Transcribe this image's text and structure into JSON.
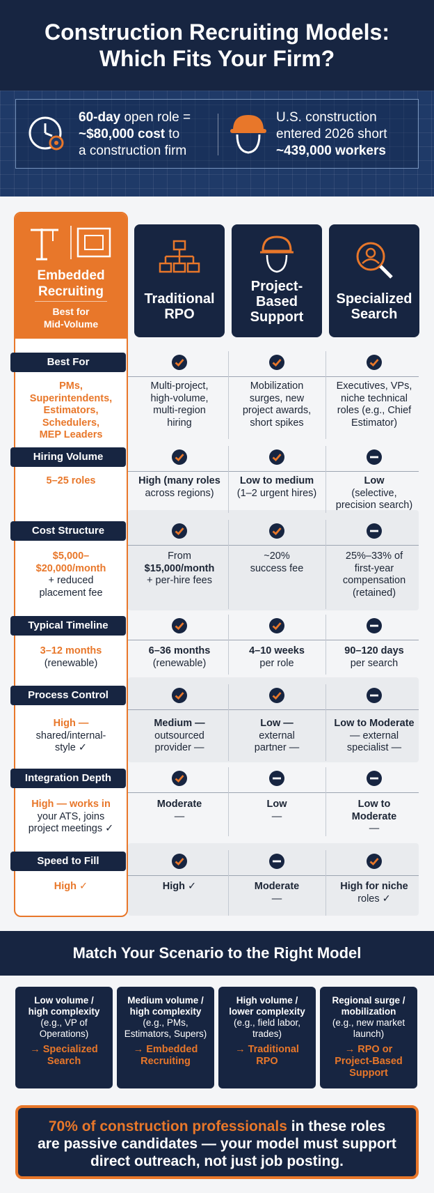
{
  "title": "Construction Recruiting Models: Which Fits Your Firm?",
  "stats": [
    {
      "bold": "60-day",
      "rest": " open role =",
      "line2_bold": "~$80,000 cost",
      "line2_rest": " to",
      "line3": "a construction firm"
    },
    {
      "line1": "U.S. construction",
      "line2": "entered 2026 short",
      "line3_bold": "~439,000 workers"
    }
  ],
  "embedded": {
    "title_line1": "Embedded",
    "title_line2": "Recruiting",
    "sub_line1": "Best for",
    "sub_line2": "Mid-Volume"
  },
  "columns": [
    {
      "line1": "Traditional",
      "line2": "RPO",
      "line3": ""
    },
    {
      "line1": "Project-",
      "line2": "Based",
      "line3": "Support"
    },
    {
      "line1": "Specialized",
      "line2": "Search",
      "line3": ""
    }
  ],
  "rows": [
    {
      "label": "Best For",
      "embedded": [
        "PMs,",
        "Superintendents,",
        "Estimators,",
        "Schedulers,",
        "MEP Leaders"
      ],
      "icons": [
        "check",
        "check",
        "check"
      ],
      "cells": [
        [
          "Multi-project,",
          "high-volume,",
          "multi-region",
          "hiring"
        ],
        [
          "Mobilization",
          "surges, new",
          "project awards,",
          "short spikes"
        ],
        [
          "Executives, VPs,",
          "niche technical",
          "roles (e.g., Chief",
          "Estimator)"
        ]
      ]
    },
    {
      "label": "Hiring Volume",
      "embedded": [
        "5–25 roles"
      ],
      "icons": [
        "check",
        "check",
        "minus"
      ],
      "cells": [
        [
          "High (many roles",
          "across regions)"
        ],
        [
          "Low to medium",
          "(1–2 urgent hires)"
        ],
        [
          "Low",
          "(selective,",
          "precision search)"
        ]
      ]
    },
    {
      "label": "Cost Structure",
      "embedded": [
        "$5,000–",
        "$20,000/month",
        "+ reduced",
        "placement fee"
      ],
      "icons": [
        "check",
        "check",
        "minus"
      ],
      "cells": [
        [
          "From",
          "$15,000/month",
          "+ per-hire fees"
        ],
        [
          "~20%",
          "success fee"
        ],
        [
          "25%–33% of",
          "first-year",
          "compensation",
          "(retained)"
        ]
      ]
    },
    {
      "label": "Typical Timeline",
      "embedded": [
        "3–12 months",
        "(renewable)"
      ],
      "icons": [
        "check",
        "check",
        "minus"
      ],
      "cells": [
        [
          "6–36 months",
          "(renewable)"
        ],
        [
          "4–10 weeks",
          "per role"
        ],
        [
          "90–120 days",
          "per search"
        ]
      ]
    },
    {
      "label": "Process Control",
      "embedded": [
        "High —",
        "shared/internal-",
        "style ✓"
      ],
      "icons": [
        "check",
        "check",
        "minus"
      ],
      "cells": [
        [
          "Medium —",
          "outsourced",
          "provider —"
        ],
        [
          "Low —",
          "external",
          "partner —"
        ],
        [
          "Low to Moderate",
          "— external",
          "specialist —"
        ]
      ]
    },
    {
      "label": "Integration Depth",
      "embedded": [
        "High — works in",
        "your ATS, joins",
        "project meetings ✓"
      ],
      "icons": [
        "check",
        "minus",
        "minus"
      ],
      "cells": [
        [
          "Moderate",
          "—"
        ],
        [
          "Low",
          "—"
        ],
        [
          "Low to",
          "Moderate",
          "—"
        ]
      ]
    },
    {
      "label": "Speed to Fill",
      "embedded": [
        "High ✓"
      ],
      "icons": [
        "check",
        "minus",
        "check"
      ],
      "cells": [
        [
          "High ✓"
        ],
        [
          "Moderate",
          "—"
        ],
        [
          "High for niche",
          "roles ✓"
        ]
      ]
    }
  ],
  "scenario_title": "Match Your Scenario to the Right Model",
  "scenarios": [
    {
      "t1": "Low volume /",
      "t2": "high complexity",
      "d1": "(e.g., VP of",
      "d2": "Operations)",
      "r1": "→ Specialized",
      "r2": "Search",
      "r3": ""
    },
    {
      "t1": "Medium volume /",
      "t2": "high complexity",
      "d1": "(e.g., PMs,",
      "d2": "Estimators, Supers)",
      "r1": "→ Embedded",
      "r2": "Recruiting",
      "r3": ""
    },
    {
      "t1": "High volume /",
      "t2": "lower complexity",
      "d1": "(e.g., field labor,",
      "d2": "trades)",
      "r1": "→ Traditional",
      "r2": "RPO",
      "r3": ""
    },
    {
      "t1": "Regional surge /",
      "t2": "mobilization",
      "d1": "(e.g., new market",
      "d2": "launch)",
      "r1": "→ RPO or",
      "r2": "Project-Based",
      "r3": "Support"
    }
  ],
  "callout": {
    "highlight": "70% of construction professionals",
    "rest1": " in these roles",
    "line2": "are passive candidates — your model must support",
    "line3": "direct outreach, not just job posting."
  },
  "colors": {
    "navy": "#172541",
    "orange": "#e8772a",
    "band": "#1f3a68"
  }
}
